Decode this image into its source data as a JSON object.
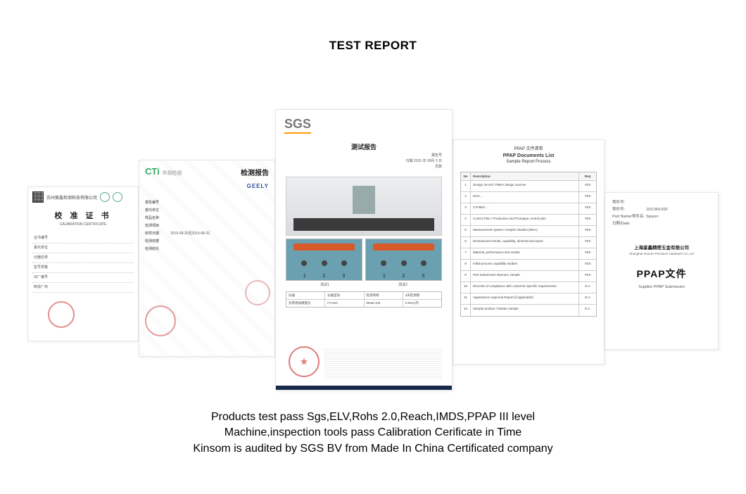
{
  "page": {
    "title": "TEST REPORT",
    "footer_line1": "Products test pass Sgs,ELV,Rohs 2.0,Reach,IMDS,PPAP III level",
    "footer_line2": "Machine,inspection tools pass Calibration Cerificate in Time",
    "footer_line3": "Kinsom is audited by SGS BV from Made In China Certificated company",
    "background_color": "#ffffff",
    "title_fontsize": 17,
    "footer_fontsize": 16
  },
  "doc1": {
    "header_company": "苏州案鑫检测科技有限公司",
    "title_cn": "校 准 证 书",
    "title_en": "CALIBRATION CERTIFICATE",
    "fields": [
      "证书编号",
      "委托单位",
      "仪器名称",
      "型号规格",
      "出厂编号",
      "制造厂商"
    ],
    "stamp_color": "#cc3333"
  },
  "doc2": {
    "logo": "CTi",
    "logo_sub": "华测检测",
    "report_title": "检测报告",
    "brand": "GEELY",
    "fields": [
      {
        "k": "报告编号",
        "v": ""
      },
      {
        "k": "委托单位",
        "v": ""
      },
      {
        "k": "样品名称",
        "v": ""
      },
      {
        "k": "检测项目",
        "v": ""
      },
      {
        "k": "收样日期",
        "v": "2015-08-20至2015-08-31"
      },
      {
        "k": "检测依据",
        "v": ""
      },
      {
        "k": "检测结论",
        "v": ""
      }
    ],
    "stamp_color": "#cc3333",
    "logo_color": "#33aa66",
    "brand_color": "#2a4fa0"
  },
  "doc3": {
    "logo": "SGS",
    "logo_color": "#777777",
    "logo_underline_color": "#ff9900",
    "test_title": "测试报告",
    "meta": {
      "line1": "报告号",
      "line2": "日期   2015 年 09月 3 日",
      "line3": "页数"
    },
    "sample_nums": [
      "1",
      "2",
      "3"
    ],
    "sample_labels": [
      "测试1",
      "测试2"
    ],
    "table": {
      "header": [
        "仪器",
        "仪器型号",
        "检测项目",
        "3天检测限"
      ],
      "row1": [
        "负荷测试硬度仪",
        "FV-810",
        "Metal 103",
        "0.5%以内"
      ]
    },
    "stamp_color": "#cc2222",
    "bar_color_sample": "#d85a2a",
    "sample_bg": "#6aa0b0",
    "footer_bar_color": "#1a2a4a"
  },
  "doc4": {
    "header_line1": "PPAP 文件清单",
    "header_line2": "PPAP Documents List",
    "header_line3": "Sample Report Process",
    "columns": [
      "No",
      "Description",
      "Req"
    ],
    "rows": [
      {
        "n": "1",
        "d": "Design record / FMEA design sources",
        "r": "YES"
      },
      {
        "n": "2",
        "d": "ECN…",
        "r": "YES"
      },
      {
        "n": "3",
        "d": "CTAM01 …",
        "r": "YES"
      },
      {
        "n": "4",
        "d": "Control Plan / Production and Prototype control plan",
        "r": "YES"
      },
      {
        "n": "5",
        "d": "Measurement System Analysis Studies (MSA)",
        "r": "YES"
      },
      {
        "n": "6",
        "d": "Dimensional results, capability, dimensional report",
        "r": "YES"
      },
      {
        "n": "7",
        "d": "Material, performance test results",
        "r": "YES"
      },
      {
        "n": "8",
        "d": "Initial process capability studies",
        "r": "YES"
      },
      {
        "n": "9",
        "d": "Part Submission Warrant, sample",
        "r": "YES"
      },
      {
        "n": "10",
        "d": "Records of compliance with customer-specific requirements",
        "r": "N.A"
      },
      {
        "n": "11",
        "d": "Appearance Approval Report (if applicable)",
        "r": "N.A"
      },
      {
        "n": "12",
        "d": "Sample product / Master sample",
        "r": "N.A"
      }
    ]
  },
  "doc5": {
    "meta": [
      {
        "k": "零件号:",
        "v": ""
      },
      {
        "k": "零件号:",
        "v": "103.064.000"
      },
      {
        "k": "Part Name/零件名:",
        "v": "Spacer"
      },
      {
        "k": "日期/Date:",
        "v": ""
      }
    ],
    "company_cn": "上海紧鑫精密五金有限公司",
    "company_en": "Shanghai Kinsom Precision Hardware Co.,Ltd",
    "big_title": "PPAP文件",
    "subtitle": "Supplier PPAP Submission"
  }
}
